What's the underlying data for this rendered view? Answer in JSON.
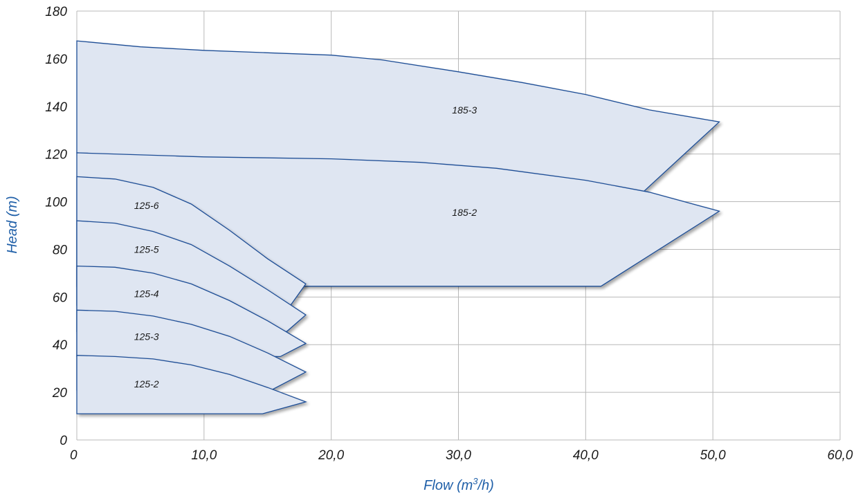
{
  "chart_data": {
    "type": "area",
    "title": "",
    "xlabel_main": "Flow (m",
    "xlabel_sup": "3",
    "xlabel_end": "/h)",
    "ylabel": "Head (m)",
    "xlim": [
      0,
      60
    ],
    "ylim": [
      0,
      180
    ],
    "grid": true,
    "x_ticks": [
      0,
      10,
      20,
      30,
      40,
      50,
      60
    ],
    "x_tick_labels": [
      "0",
      "10,0",
      "20,0",
      "30,0",
      "40,0",
      "50,0",
      "60,0"
    ],
    "y_ticks": [
      0,
      20,
      40,
      60,
      80,
      100,
      120,
      140,
      160,
      180
    ],
    "y_tick_labels": [
      "0",
      "20",
      "40",
      "60",
      "80",
      "100",
      "120",
      "140",
      "160",
      "180"
    ],
    "colors": {
      "fill": "#dfe6f2",
      "stroke": "#1f4e96",
      "axis_title": "#1f5fa8",
      "grid": "#b8b8b8"
    },
    "series": [
      {
        "name": "185-3",
        "label_at": [
          29.5,
          137
        ],
        "points": [
          [
            0,
            167.5
          ],
          [
            5,
            165
          ],
          [
            10,
            163.5
          ],
          [
            15,
            162.5
          ],
          [
            20,
            161.5
          ],
          [
            24,
            159.5
          ],
          [
            30,
            154.5
          ],
          [
            35,
            150
          ],
          [
            40,
            145
          ],
          [
            45,
            138.5
          ],
          [
            50.5,
            133.5
          ],
          [
            44.5,
            104
          ],
          [
            0,
            120.5
          ]
        ]
      },
      {
        "name": "185-2",
        "label_at": [
          29.5,
          94
        ],
        "points": [
          [
            0,
            120.5
          ],
          [
            10,
            118.8
          ],
          [
            20,
            118
          ],
          [
            27,
            116.5
          ],
          [
            33,
            114
          ],
          [
            40,
            109
          ],
          [
            45,
            104
          ],
          [
            50.5,
            96
          ],
          [
            41.2,
            64.5
          ],
          [
            17.8,
            64.5
          ],
          [
            0,
            64.5
          ]
        ]
      },
      {
        "name": "125-6",
        "label_at": [
          4.5,
          97
        ],
        "points": [
          [
            0,
            110.5
          ],
          [
            3,
            109.5
          ],
          [
            6,
            106
          ],
          [
            9,
            99
          ],
          [
            12,
            88
          ],
          [
            15,
            76
          ],
          [
            18,
            65.5
          ],
          [
            16.8,
            56.5
          ],
          [
            0,
            56.5
          ]
        ]
      },
      {
        "name": "125-5",
        "label_at": [
          4.5,
          78.5
        ],
        "points": [
          [
            0,
            92
          ],
          [
            3,
            91
          ],
          [
            6,
            87.5
          ],
          [
            9,
            82
          ],
          [
            12,
            73
          ],
          [
            15,
            63
          ],
          [
            18,
            52.5
          ],
          [
            16.5,
            45.5
          ],
          [
            0,
            45.5
          ]
        ]
      },
      {
        "name": "125-4",
        "label_at": [
          4.5,
          60
        ],
        "points": [
          [
            0,
            73
          ],
          [
            3,
            72.5
          ],
          [
            6,
            70
          ],
          [
            9,
            65.5
          ],
          [
            12,
            58.5
          ],
          [
            15,
            50
          ],
          [
            18,
            40.5
          ],
          [
            16,
            35
          ],
          [
            0,
            35
          ]
        ]
      },
      {
        "name": "125-3",
        "label_at": [
          4.5,
          42
        ],
        "points": [
          [
            0,
            54.5
          ],
          [
            3,
            54
          ],
          [
            6,
            52
          ],
          [
            9,
            48.5
          ],
          [
            12,
            43.5
          ],
          [
            15,
            36.5
          ],
          [
            18,
            28.5
          ],
          [
            15.3,
            21
          ],
          [
            0,
            21
          ]
        ]
      },
      {
        "name": "125-2",
        "label_at": [
          4.5,
          22
        ],
        "points": [
          [
            0,
            35.5
          ],
          [
            3,
            35
          ],
          [
            6,
            34
          ],
          [
            9,
            31.5
          ],
          [
            12,
            27.5
          ],
          [
            15,
            22
          ],
          [
            18,
            16
          ],
          [
            14.6,
            11
          ],
          [
            0,
            11
          ]
        ]
      }
    ]
  }
}
